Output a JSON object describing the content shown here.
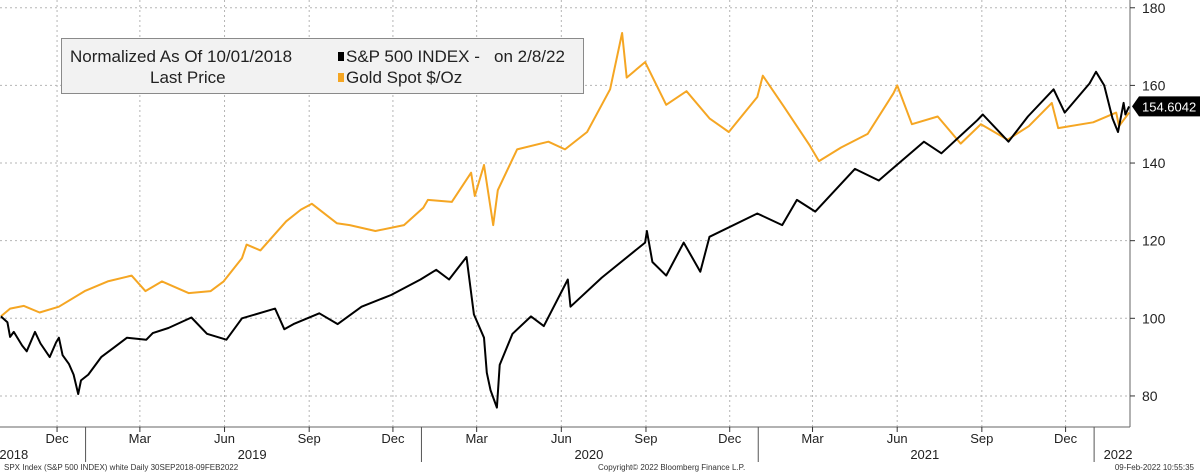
{
  "chart_data": {
    "type": "line",
    "legend": {
      "title_line1": "Normalized As Of 10/01/2018",
      "title_line2": "Last Price",
      "series1_label": "S&P 500 INDEX -   on 2/8/22",
      "series2_label": "Gold Spot $/Oz"
    },
    "y_axis": {
      "position": "right",
      "ticks": [
        "80",
        "100",
        "120",
        "140",
        "160",
        "180"
      ],
      "ylim": [
        72,
        182
      ]
    },
    "x_axis": {
      "month_ticks": [
        "Dec",
        "Mar",
        "Jun",
        "Sep",
        "Dec",
        "Mar",
        "Jun",
        "Sep",
        "Dec",
        "Mar",
        "Jun",
        "Sep",
        "Dec"
      ],
      "month_dates": [
        "2018-12-01",
        "2019-03-01",
        "2019-06-01",
        "2019-09-01",
        "2019-12-01",
        "2020-03-01",
        "2020-06-01",
        "2020-09-01",
        "2020-12-01",
        "2021-03-01",
        "2021-06-01",
        "2021-09-01",
        "2021-12-01"
      ],
      "year_ticks": [
        "2018",
        "2019",
        "2020",
        "2021",
        "2022"
      ],
      "year_dates": [
        "2018-10-15",
        "2019-07-01",
        "2020-07-01",
        "2021-07-01",
        "2022-01-27"
      ],
      "start": "2018-09-30",
      "end": "2022-02-09"
    },
    "last_value_label": "154.6042",
    "gridlines": "dashed-horizontal-and-vertical",
    "series": [
      {
        "name": "S&P 500 INDEX",
        "color": "#000000",
        "points": [
          [
            "2018-10-01",
            100.5
          ],
          [
            "2018-10-08",
            99.0
          ],
          [
            "2018-10-11",
            95.2
          ],
          [
            "2018-10-15",
            96.5
          ],
          [
            "2018-10-24",
            93.0
          ],
          [
            "2018-10-29",
            91.5
          ],
          [
            "2018-11-07",
            96.5
          ],
          [
            "2018-11-13",
            93.5
          ],
          [
            "2018-11-23",
            90.0
          ],
          [
            "2018-11-30",
            93.8
          ],
          [
            "2018-12-03",
            95.0
          ],
          [
            "2018-12-07",
            90.5
          ],
          [
            "2018-12-14",
            88.2
          ],
          [
            "2018-12-19",
            85.5
          ],
          [
            "2018-12-24",
            80.5
          ],
          [
            "2018-12-27",
            84.0
          ],
          [
            "2019-01-04",
            85.5
          ],
          [
            "2019-01-18",
            90.0
          ],
          [
            "2019-02-01",
            92.5
          ],
          [
            "2019-02-15",
            95.0
          ],
          [
            "2019-03-08",
            94.5
          ],
          [
            "2019-03-15",
            96.2
          ],
          [
            "2019-04-01",
            97.5
          ],
          [
            "2019-04-26",
            100.2
          ],
          [
            "2019-05-13",
            96.0
          ],
          [
            "2019-06-03",
            94.5
          ],
          [
            "2019-06-20",
            100.0
          ],
          [
            "2019-07-26",
            102.5
          ],
          [
            "2019-08-05",
            97.2
          ],
          [
            "2019-08-15",
            98.5
          ],
          [
            "2019-09-12",
            101.3
          ],
          [
            "2019-10-02",
            98.5
          ],
          [
            "2019-10-28",
            103.0
          ],
          [
            "2019-11-29",
            106.0
          ],
          [
            "2019-12-31",
            110.0
          ],
          [
            "2020-01-17",
            112.5
          ],
          [
            "2020-01-31",
            110.0
          ],
          [
            "2020-02-19",
            115.8
          ],
          [
            "2020-02-27",
            101.0
          ],
          [
            "2020-03-09",
            95.0
          ],
          [
            "2020-03-12",
            86.0
          ],
          [
            "2020-03-16",
            81.5
          ],
          [
            "2020-03-23",
            77.0
          ],
          [
            "2020-03-26",
            88.0
          ],
          [
            "2020-04-09",
            96.0
          ],
          [
            "2020-04-29",
            100.5
          ],
          [
            "2020-05-13",
            98.0
          ],
          [
            "2020-06-08",
            110.0
          ],
          [
            "2020-06-11",
            103.0
          ],
          [
            "2020-07-15",
            110.5
          ],
          [
            "2020-08-31",
            119.5
          ],
          [
            "2020-09-02",
            122.5
          ],
          [
            "2020-09-08",
            114.5
          ],
          [
            "2020-09-23",
            111.0
          ],
          [
            "2020-10-12",
            119.5
          ],
          [
            "2020-10-30",
            112.0
          ],
          [
            "2020-11-09",
            121.0
          ],
          [
            "2020-12-31",
            127.0
          ],
          [
            "2021-01-27",
            124.0
          ],
          [
            "2021-02-12",
            130.5
          ],
          [
            "2021-03-04",
            127.5
          ],
          [
            "2021-04-16",
            138.5
          ],
          [
            "2021-05-12",
            135.5
          ],
          [
            "2021-06-30",
            145.5
          ],
          [
            "2021-07-19",
            142.5
          ],
          [
            "2021-08-27",
            151.0
          ],
          [
            "2021-09-02",
            152.5
          ],
          [
            "2021-09-30",
            145.5
          ],
          [
            "2021-10-21",
            152.0
          ],
          [
            "2021-11-18",
            159.0
          ],
          [
            "2021-11-30",
            153.0
          ],
          [
            "2021-12-27",
            160.5
          ],
          [
            "2022-01-03",
            163.5
          ],
          [
            "2022-01-12",
            160.0
          ],
          [
            "2022-01-21",
            151.5
          ],
          [
            "2022-01-27",
            148.0
          ],
          [
            "2022-02-02",
            155.5
          ],
          [
            "2022-02-04",
            152.5
          ],
          [
            "2022-02-08",
            154.6
          ]
        ]
      },
      {
        "name": "Gold Spot $/Oz",
        "color": "#f5a623",
        "points": [
          [
            "2018-10-01",
            100.5
          ],
          [
            "2018-10-11",
            102.5
          ],
          [
            "2018-10-26",
            103.2
          ],
          [
            "2018-11-12",
            101.5
          ],
          [
            "2018-12-03",
            103.0
          ],
          [
            "2018-12-31",
            107.0
          ],
          [
            "2019-01-25",
            109.5
          ],
          [
            "2019-02-20",
            111.0
          ],
          [
            "2019-03-07",
            107.0
          ],
          [
            "2019-03-25",
            109.5
          ],
          [
            "2019-04-23",
            106.5
          ],
          [
            "2019-05-17",
            107.0
          ],
          [
            "2019-05-31",
            109.5
          ],
          [
            "2019-06-20",
            115.5
          ],
          [
            "2019-06-25",
            119.0
          ],
          [
            "2019-07-10",
            117.5
          ],
          [
            "2019-08-07",
            125.0
          ],
          [
            "2019-08-23",
            128.0
          ],
          [
            "2019-09-04",
            129.5
          ],
          [
            "2019-10-01",
            124.5
          ],
          [
            "2019-10-15",
            124.0
          ],
          [
            "2019-11-12",
            122.5
          ],
          [
            "2019-12-13",
            124.0
          ],
          [
            "2020-01-03",
            128.5
          ],
          [
            "2020-01-08",
            130.5
          ],
          [
            "2020-02-03",
            130.0
          ],
          [
            "2020-02-24",
            137.5
          ],
          [
            "2020-02-28",
            131.5
          ],
          [
            "2020-03-09",
            139.5
          ],
          [
            "2020-03-19",
            124.0
          ],
          [
            "2020-03-24",
            133.0
          ],
          [
            "2020-04-14",
            143.5
          ],
          [
            "2020-05-18",
            145.5
          ],
          [
            "2020-06-05",
            143.5
          ],
          [
            "2020-06-29",
            148.0
          ],
          [
            "2020-07-24",
            159.0
          ],
          [
            "2020-08-06",
            173.5
          ],
          [
            "2020-08-11",
            162.0
          ],
          [
            "2020-08-31",
            166.0
          ],
          [
            "2020-09-23",
            155.0
          ],
          [
            "2020-10-15",
            158.5
          ],
          [
            "2020-11-09",
            151.5
          ],
          [
            "2020-11-30",
            148.0
          ],
          [
            "2020-12-31",
            157.0
          ],
          [
            "2021-01-06",
            162.5
          ],
          [
            "2021-01-29",
            154.5
          ],
          [
            "2021-02-26",
            144.5
          ],
          [
            "2021-03-08",
            140.5
          ],
          [
            "2021-04-01",
            144.0
          ],
          [
            "2021-04-30",
            147.5
          ],
          [
            "2021-05-28",
            158.0
          ],
          [
            "2021-06-01",
            160.0
          ],
          [
            "2021-06-17",
            150.0
          ],
          [
            "2021-07-15",
            152.0
          ],
          [
            "2021-08-09",
            145.0
          ],
          [
            "2021-08-31",
            150.0
          ],
          [
            "2021-09-29",
            146.0
          ],
          [
            "2021-10-22",
            149.5
          ],
          [
            "2021-11-16",
            155.5
          ],
          [
            "2021-11-23",
            149.0
          ],
          [
            "2021-12-31",
            150.5
          ],
          [
            "2022-01-25",
            153.0
          ],
          [
            "2022-01-28",
            149.5
          ],
          [
            "2022-02-08",
            153.0
          ]
        ]
      }
    ]
  },
  "footer": {
    "left": "SPX Index (S&P 500 INDEX) white  Daily 30SEP2018-09FEB2022",
    "center": "Copyright© 2022 Bloomberg Finance L.P.",
    "right": "09-Feb-2022 10:55:35"
  }
}
